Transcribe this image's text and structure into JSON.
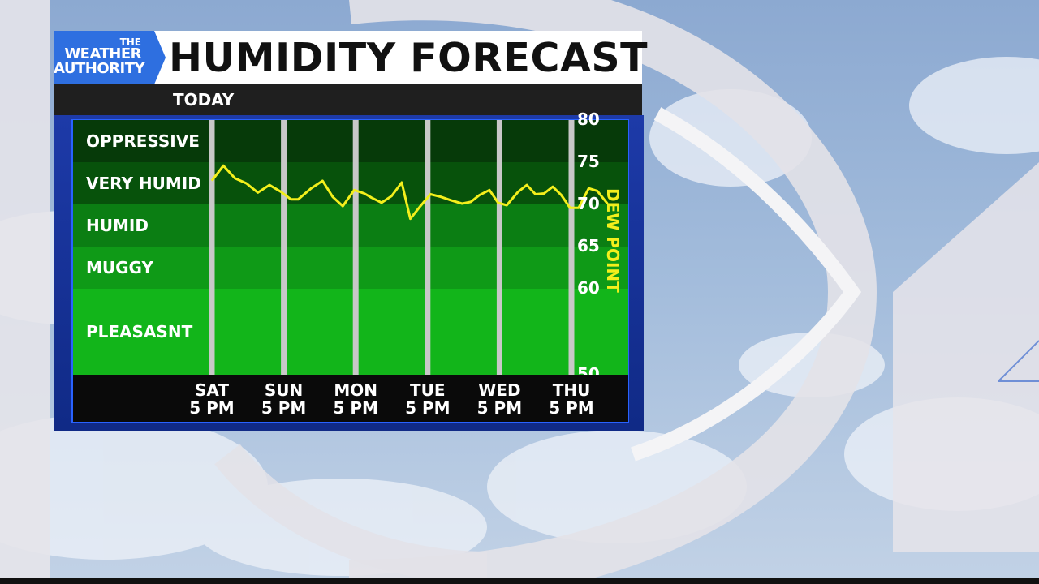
{
  "header": {
    "logo_line1": "THE",
    "logo_line2": "WEATHER",
    "logo_line3": "AUTHORITY",
    "title": "HUMIDITY FORECAST",
    "subtitle": "TODAY"
  },
  "colors": {
    "logo_blue": "#2e6fe0",
    "panel_blue": "#1d3aa8",
    "line_yellow": "#f3ef1c",
    "band_pleasant": "#12b51a",
    "band_muggy": "#0f9a17",
    "band_humid": "#0b7e13",
    "band_very_humid": "#07520b",
    "band_oppressive": "#063a09",
    "divider_gray": "#c8c8c8"
  },
  "chart_data": {
    "type": "line",
    "title": "HUMIDITY FORECAST",
    "subtitle": "TODAY",
    "ylabel": "DEW POINT",
    "ylim": [
      50,
      80
    ],
    "yticks": [
      50,
      60,
      65,
      70,
      75,
      80
    ],
    "bands": [
      {
        "label": "OPPRESSIVE",
        "from": 75,
        "to": 80
      },
      {
        "label": "VERY HUMID",
        "from": 70,
        "to": 75
      },
      {
        "label": "HUMID",
        "from": 65,
        "to": 70
      },
      {
        "label": "MUGGY",
        "from": 60,
        "to": 65
      },
      {
        "label": "PLEASASNT",
        "from": 50,
        "to": 60
      }
    ],
    "x_axis": [
      {
        "day": "SAT",
        "time": "5 PM"
      },
      {
        "day": "SUN",
        "time": "5 PM"
      },
      {
        "day": "MON",
        "time": "5 PM"
      },
      {
        "day": "TUE",
        "time": "5 PM"
      },
      {
        "day": "WED",
        "time": "5 PM"
      },
      {
        "day": "THU",
        "time": "5 PM"
      }
    ],
    "series": [
      {
        "values": [
          72.8,
          74.6,
          73.1,
          72.5,
          71.4,
          72.3,
          71.5,
          70.6,
          70.6,
          71.9,
          72.8,
          70.9,
          69.8,
          71.7,
          71.3,
          70.8,
          70.2,
          71.0,
          72.6,
          68.3,
          69.8,
          71.2,
          70.9,
          70.5,
          70.1,
          70.3,
          71.1,
          71.7,
          70.2,
          69.9,
          71.5,
          72.3,
          71.2,
          71.3,
          72.1,
          71.1,
          69.6,
          69.6,
          71.9,
          71.6,
          70.1
        ],
        "x": [
          0.0,
          0.16,
          0.32,
          0.48,
          0.64,
          0.8,
          0.96,
          1.1,
          1.2,
          1.38,
          1.54,
          1.68,
          1.82,
          1.98,
          2.12,
          2.22,
          2.36,
          2.5,
          2.64,
          2.76,
          2.9,
          3.04,
          3.18,
          3.32,
          3.48,
          3.6,
          3.72,
          3.86,
          3.98,
          4.1,
          4.26,
          4.38,
          4.5,
          4.62,
          4.74,
          4.86,
          4.98,
          5.1,
          5.24,
          5.36,
          5.5
        ]
      }
    ]
  }
}
